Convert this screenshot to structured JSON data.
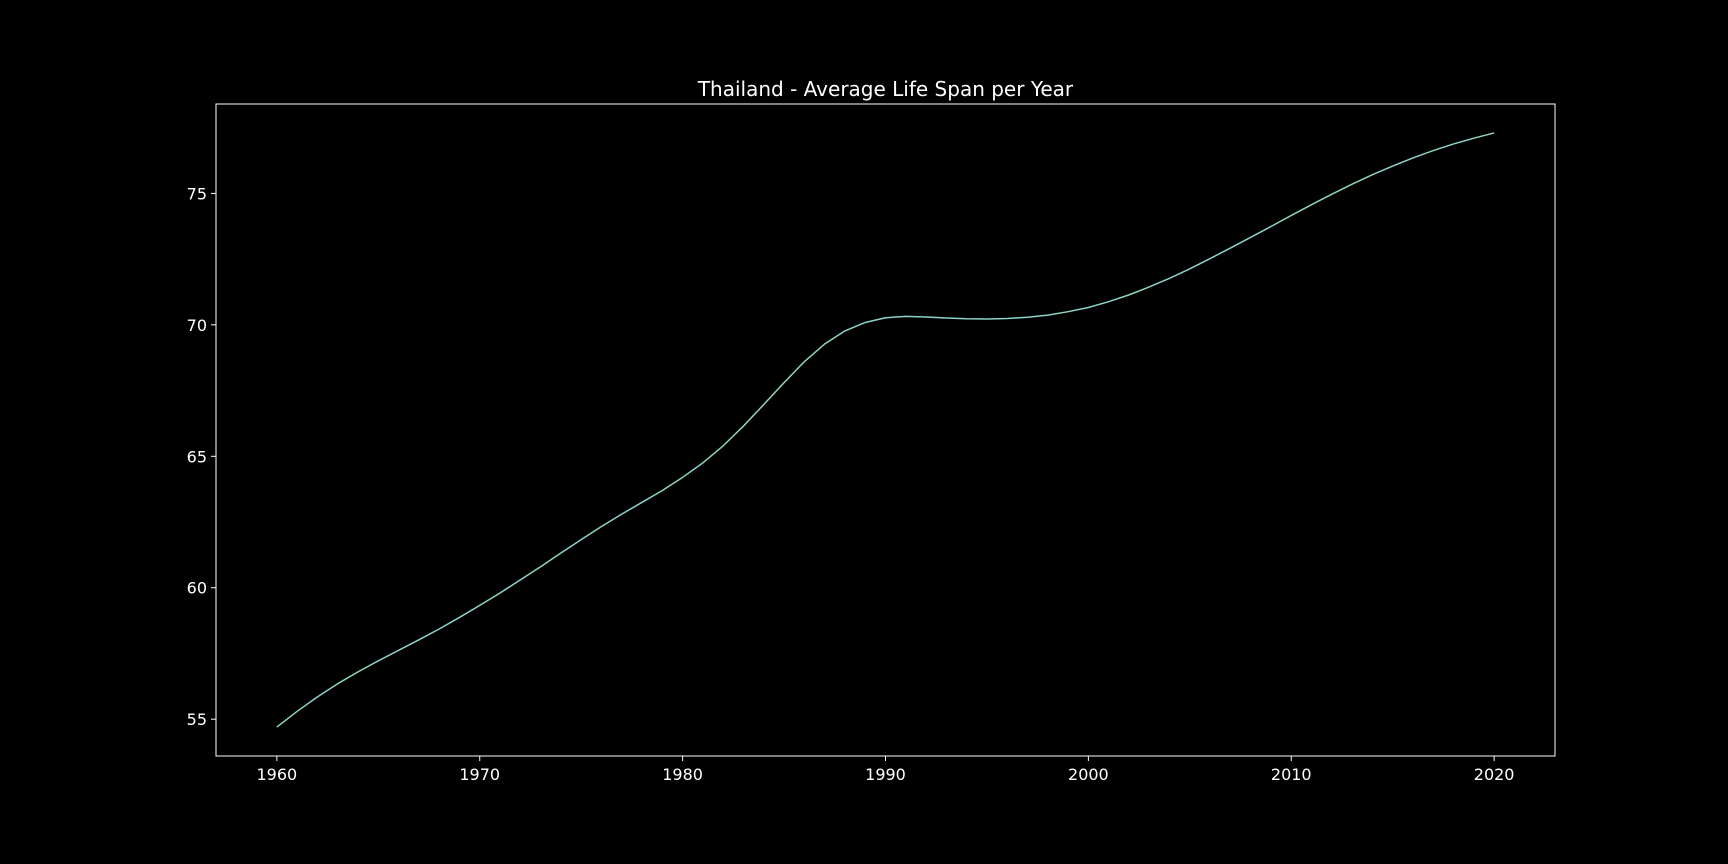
{
  "chart_data": {
    "type": "line",
    "title": "Thailand - Average Life Span per Year",
    "xlabel": "",
    "ylabel": "",
    "xlim": [
      1957,
      2023
    ],
    "ylim": [
      53.6,
      78.4
    ],
    "x_ticks": [
      "1960",
      "1970",
      "1980",
      "1990",
      "2000",
      "2010",
      "2020"
    ],
    "y_ticks": [
      "55",
      "60",
      "65",
      "70",
      "75"
    ],
    "grid": false,
    "legend": "none",
    "colors": {
      "background": "#000000",
      "axes": "#ffffff",
      "line": "#8dd3c7",
      "text": "#ffffff"
    },
    "series": [
      {
        "x": [
          1960,
          1961,
          1962,
          1963,
          1964,
          1965,
          1966,
          1967,
          1968,
          1969,
          1970,
          1971,
          1972,
          1973,
          1974,
          1975,
          1976,
          1977,
          1978,
          1979,
          1980,
          1981,
          1982,
          1983,
          1984,
          1985,
          1986,
          1987,
          1988,
          1989,
          1990,
          1991,
          1992,
          1993,
          1994,
          1995,
          1996,
          1997,
          1998,
          1999,
          2000,
          2001,
          2002,
          2003,
          2004,
          2005,
          2006,
          2007,
          2008,
          2009,
          2010,
          2011,
          2012,
          2013,
          2014,
          2015,
          2016,
          2017,
          2018,
          2019,
          2020
        ],
        "y": [
          54.7,
          55.3,
          55.85,
          56.35,
          56.8,
          57.22,
          57.62,
          58.02,
          58.43,
          58.87,
          59.33,
          59.8,
          60.3,
          60.8,
          61.32,
          61.83,
          62.33,
          62.8,
          63.25,
          63.7,
          64.2,
          64.75,
          65.4,
          66.15,
          66.97,
          67.8,
          68.6,
          69.27,
          69.77,
          70.09,
          70.27,
          70.32,
          70.3,
          70.26,
          70.23,
          70.22,
          70.24,
          70.29,
          70.37,
          70.5,
          70.66,
          70.88,
          71.14,
          71.44,
          71.77,
          72.13,
          72.52,
          72.92,
          73.33,
          73.74,
          74.16,
          74.57,
          74.97,
          75.35,
          75.71,
          76.04,
          76.35,
          76.63,
          76.88,
          77.1,
          77.3
        ]
      }
    ]
  }
}
